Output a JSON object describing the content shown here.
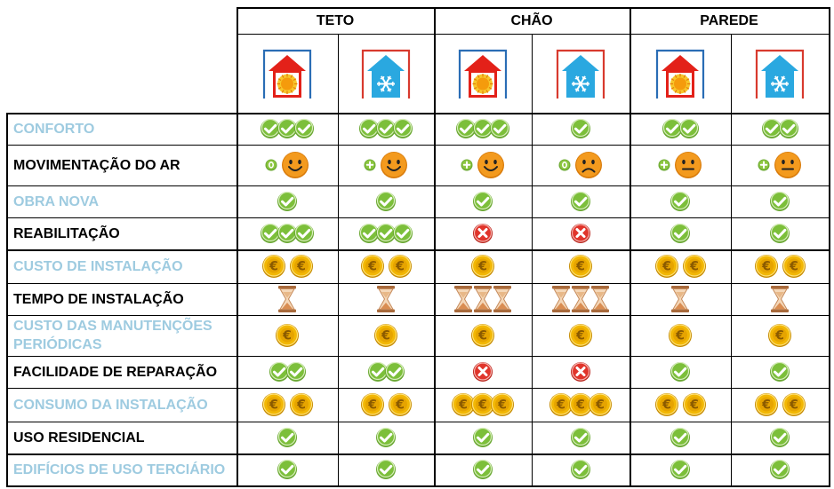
{
  "groups": [
    {
      "label": "TETO"
    },
    {
      "label": "CHÃO"
    },
    {
      "label": "PAREDE"
    }
  ],
  "column_modes": [
    "heat",
    "cool",
    "heat",
    "cool",
    "heat",
    "cool"
  ],
  "rows": [
    {
      "label": "CONFORTO",
      "color": "blue",
      "cells": [
        {
          "type": "check",
          "count": 3
        },
        {
          "type": "check",
          "count": 3
        },
        {
          "type": "check",
          "count": 3
        },
        {
          "type": "check",
          "count": 1
        },
        {
          "type": "check",
          "count": 2
        },
        {
          "type": "check",
          "count": 2
        }
      ]
    },
    {
      "label": "MOVIMENTAÇÃO DO AR",
      "color": "black",
      "cells": [
        {
          "type": "air",
          "sign": "0",
          "face": "happy"
        },
        {
          "type": "air",
          "sign": "+",
          "face": "happy"
        },
        {
          "type": "air",
          "sign": "+",
          "face": "happy"
        },
        {
          "type": "air",
          "sign": "0",
          "face": "sad"
        },
        {
          "type": "air",
          "sign": "+",
          "face": "neutral"
        },
        {
          "type": "air",
          "sign": "+",
          "face": "neutral"
        }
      ]
    },
    {
      "label": "OBRA NOVA",
      "color": "blue",
      "cells": [
        {
          "type": "check",
          "count": 1
        },
        {
          "type": "check",
          "count": 1
        },
        {
          "type": "check",
          "count": 1
        },
        {
          "type": "check",
          "count": 1
        },
        {
          "type": "check",
          "count": 1
        },
        {
          "type": "check",
          "count": 1
        }
      ]
    },
    {
      "label": "REABILITAÇÃO",
      "color": "black",
      "cells": [
        {
          "type": "check",
          "count": 3
        },
        {
          "type": "check",
          "count": 3
        },
        {
          "type": "cross",
          "count": 1
        },
        {
          "type": "cross",
          "count": 1
        },
        {
          "type": "check",
          "count": 1
        },
        {
          "type": "check",
          "count": 1
        }
      ]
    },
    {
      "label": "CUSTO DE INSTALAÇÃO",
      "color": "blue",
      "cells": [
        {
          "type": "coin",
          "count": 2
        },
        {
          "type": "coin",
          "count": 2
        },
        {
          "type": "coin",
          "count": 1
        },
        {
          "type": "coin",
          "count": 1
        },
        {
          "type": "coin",
          "count": 2
        },
        {
          "type": "coin",
          "count": 2
        }
      ]
    },
    {
      "label": "TEMPO DE INSTALAÇÃO",
      "color": "black",
      "cells": [
        {
          "type": "hourglass",
          "count": 1
        },
        {
          "type": "hourglass",
          "count": 1
        },
        {
          "type": "hourglass",
          "count": 3
        },
        {
          "type": "hourglass",
          "count": 3
        },
        {
          "type": "hourglass",
          "count": 1
        },
        {
          "type": "hourglass",
          "count": 1
        }
      ]
    },
    {
      "label": "CUSTO DAS MANUTENÇÕES PERIÓDICAS",
      "color": "blue",
      "cells": [
        {
          "type": "coin",
          "count": 1
        },
        {
          "type": "coin",
          "count": 1
        },
        {
          "type": "coin",
          "count": 1
        },
        {
          "type": "coin",
          "count": 1
        },
        {
          "type": "coin",
          "count": 1
        },
        {
          "type": "coin",
          "count": 1
        }
      ]
    },
    {
      "label": "FACILIDADE DE REPARAÇÃO",
      "color": "black",
      "cells": [
        {
          "type": "check",
          "count": 2
        },
        {
          "type": "check",
          "count": 2
        },
        {
          "type": "cross",
          "count": 1
        },
        {
          "type": "cross",
          "count": 1
        },
        {
          "type": "check",
          "count": 1
        },
        {
          "type": "check",
          "count": 1
        }
      ]
    },
    {
      "label": "CONSUMO DA INSTALAÇÃO",
      "color": "blue",
      "cells": [
        {
          "type": "coin",
          "count": 2
        },
        {
          "type": "coin",
          "count": 2
        },
        {
          "type": "coin",
          "count": 3
        },
        {
          "type": "coin",
          "count": 3
        },
        {
          "type": "coin",
          "count": 2
        },
        {
          "type": "coin",
          "count": 2
        }
      ]
    },
    {
      "label": "USO RESIDENCIAL",
      "color": "black",
      "cells": [
        {
          "type": "check",
          "count": 1
        },
        {
          "type": "check",
          "count": 1
        },
        {
          "type": "check",
          "count": 1
        },
        {
          "type": "check",
          "count": 1
        },
        {
          "type": "check",
          "count": 1
        },
        {
          "type": "check",
          "count": 1
        }
      ]
    },
    {
      "label": "EDIFÍCIOS DE USO TERCIÁRIO",
      "color": "blue",
      "cells": [
        {
          "type": "check",
          "count": 1
        },
        {
          "type": "check",
          "count": 1
        },
        {
          "type": "check",
          "count": 1
        },
        {
          "type": "check",
          "count": 1
        },
        {
          "type": "check",
          "count": 1
        },
        {
          "type": "check",
          "count": 1
        }
      ]
    }
  ],
  "colors": {
    "label_blue": "#9ecbe0",
    "check_green": "#7cbf3a",
    "cross_red": "#e0352b",
    "coin_gold": "#f2b705",
    "face_orange": "#f39a1e",
    "house_red": "#e32119",
    "house_blue": "#2aa8e0",
    "sign_green": "#8cc63f",
    "hourglass_sand": "#e8b888"
  }
}
